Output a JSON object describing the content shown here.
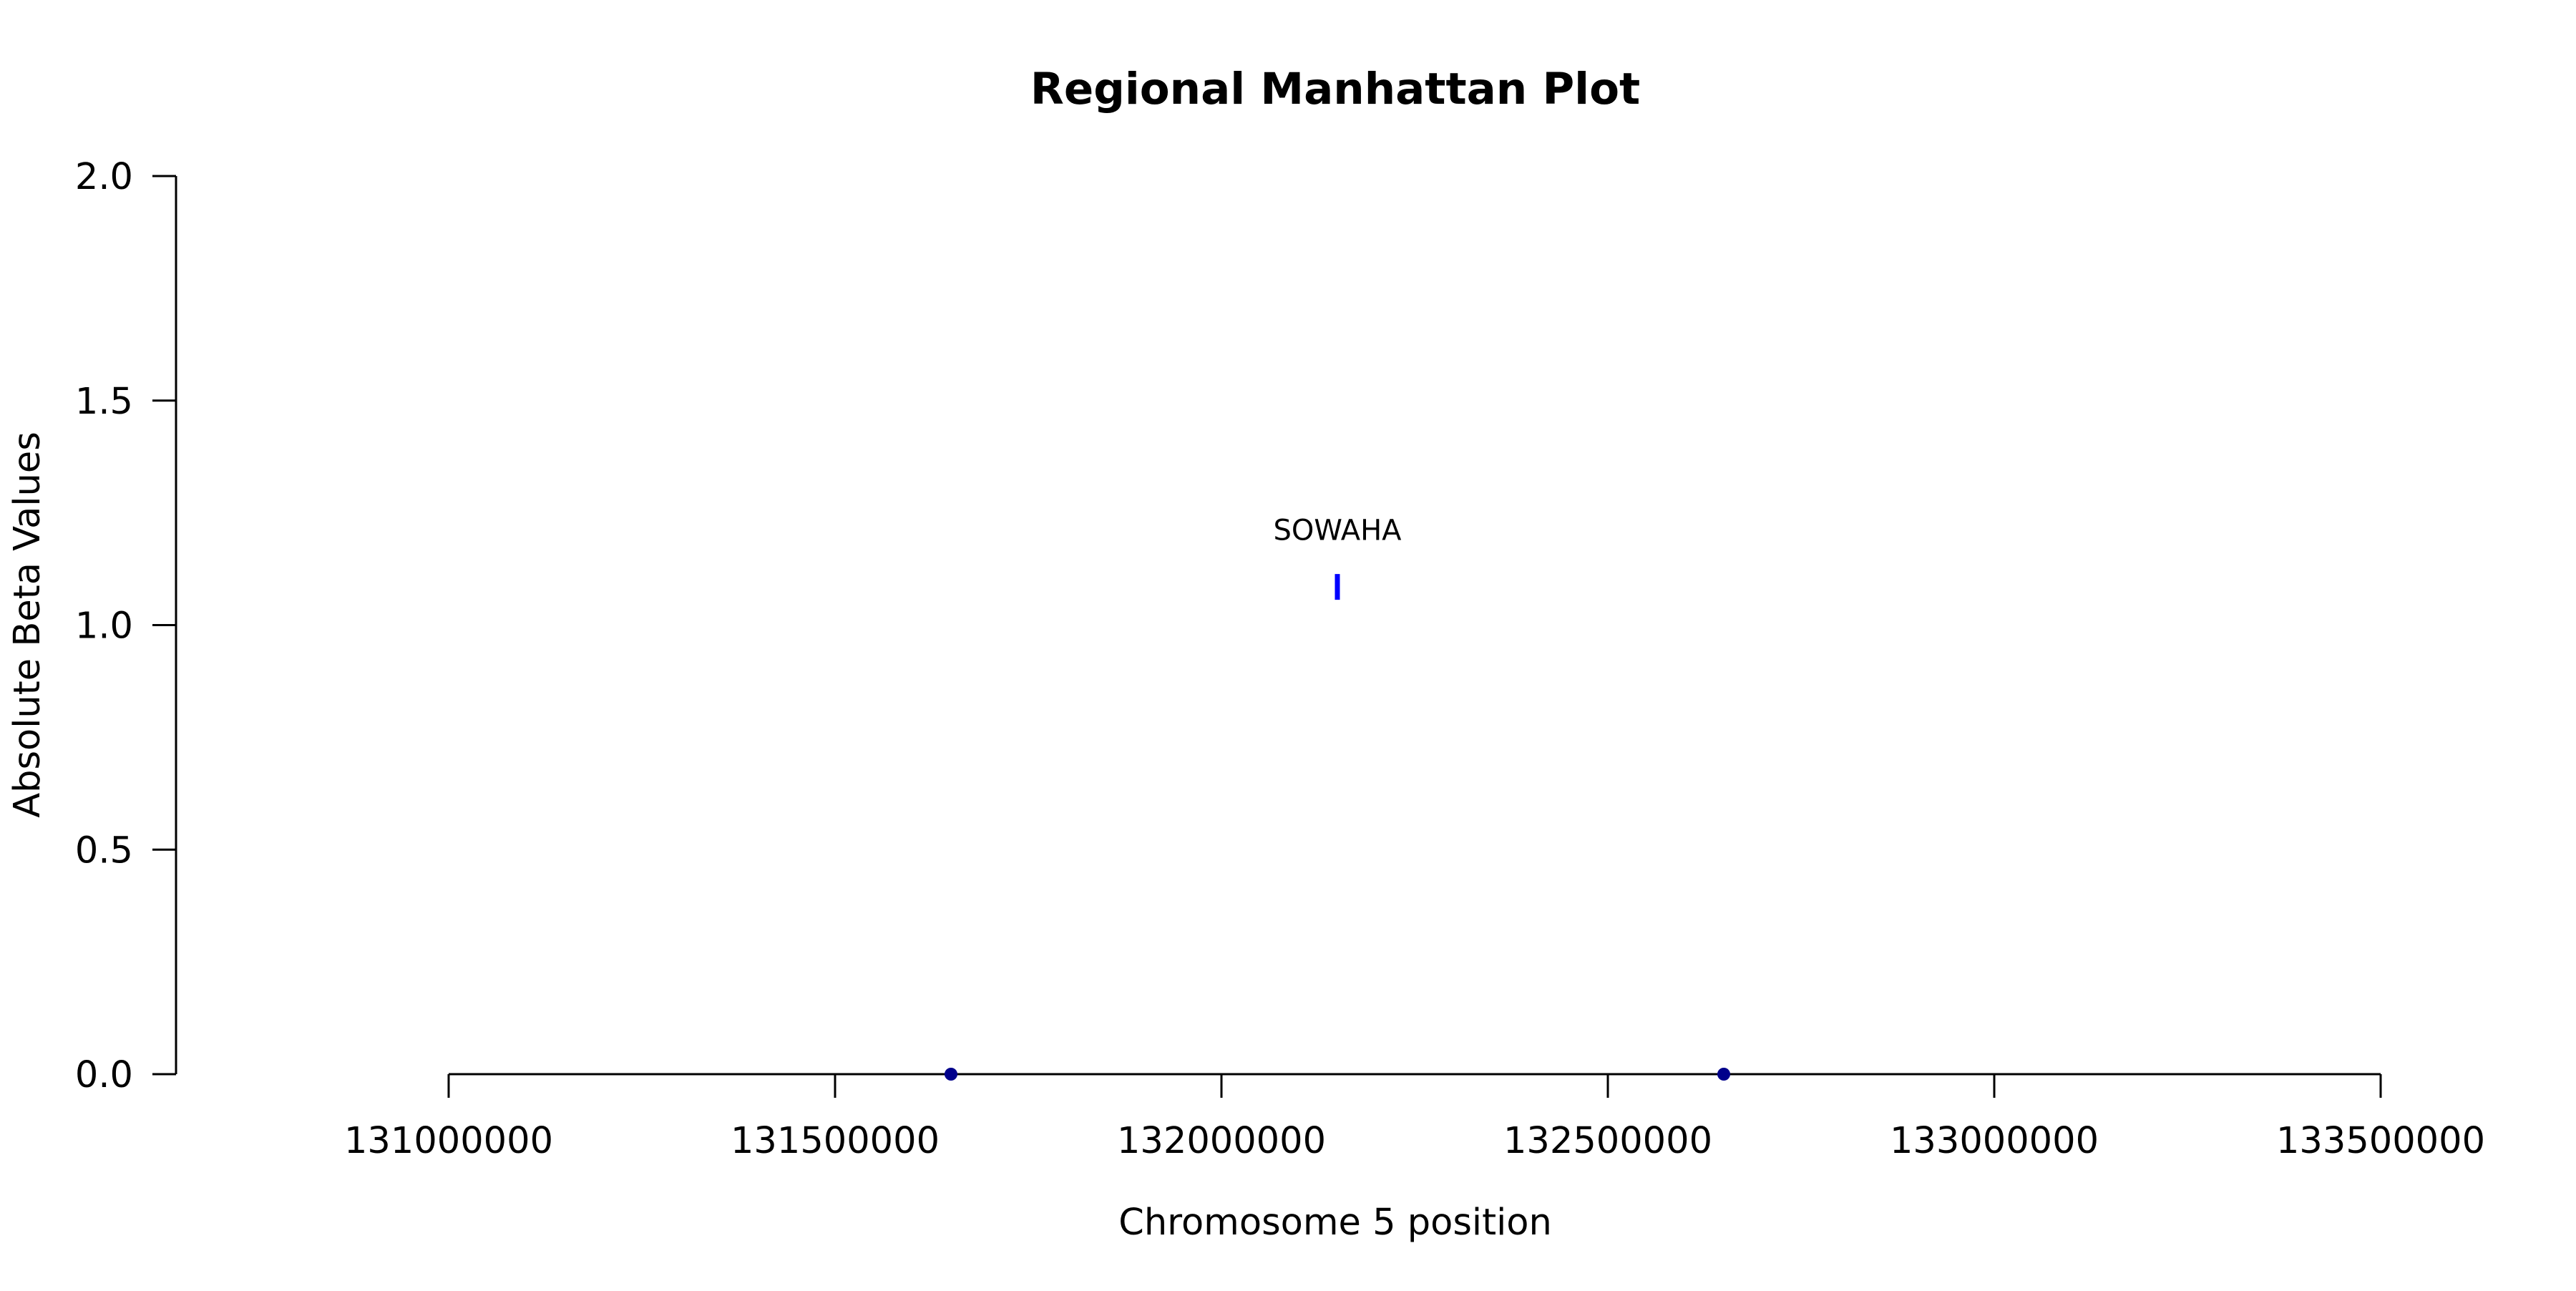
{
  "chart_data": {
    "type": "scatter",
    "title": "Regional Manhattan Plot",
    "xlabel": "Chromosome 5 position",
    "ylabel": "Absolute Beta Values",
    "xlim": [
      131000000,
      133500000
    ],
    "ylim": [
      0,
      2
    ],
    "x_ticks": [
      131000000,
      131500000,
      132000000,
      132500000,
      133000000,
      133500000
    ],
    "x_tick_labels": [
      "131000000",
      "131500000",
      "132000000",
      "132500000",
      "133000000",
      "133500000"
    ],
    "y_ticks": [
      0,
      0.5,
      1,
      1.5,
      2
    ],
    "y_tick_labels": [
      "0.0",
      "0.5",
      "1.0",
      "1.5",
      "2.0"
    ],
    "grid": false,
    "series": [
      {
        "marker": "circle",
        "color": "#00008b",
        "points": [
          {
            "x": 131650000,
            "y": 0.0
          },
          {
            "x": 132650000,
            "y": 0.0
          }
        ]
      },
      {
        "marker": "vertical-bar",
        "color": "#0000ff",
        "points": [
          {
            "x": 132150000,
            "y": 1.085
          }
        ]
      }
    ],
    "annotations": [
      {
        "text": "SOWAHA",
        "x": 132150000,
        "y": 1.19
      }
    ]
  }
}
